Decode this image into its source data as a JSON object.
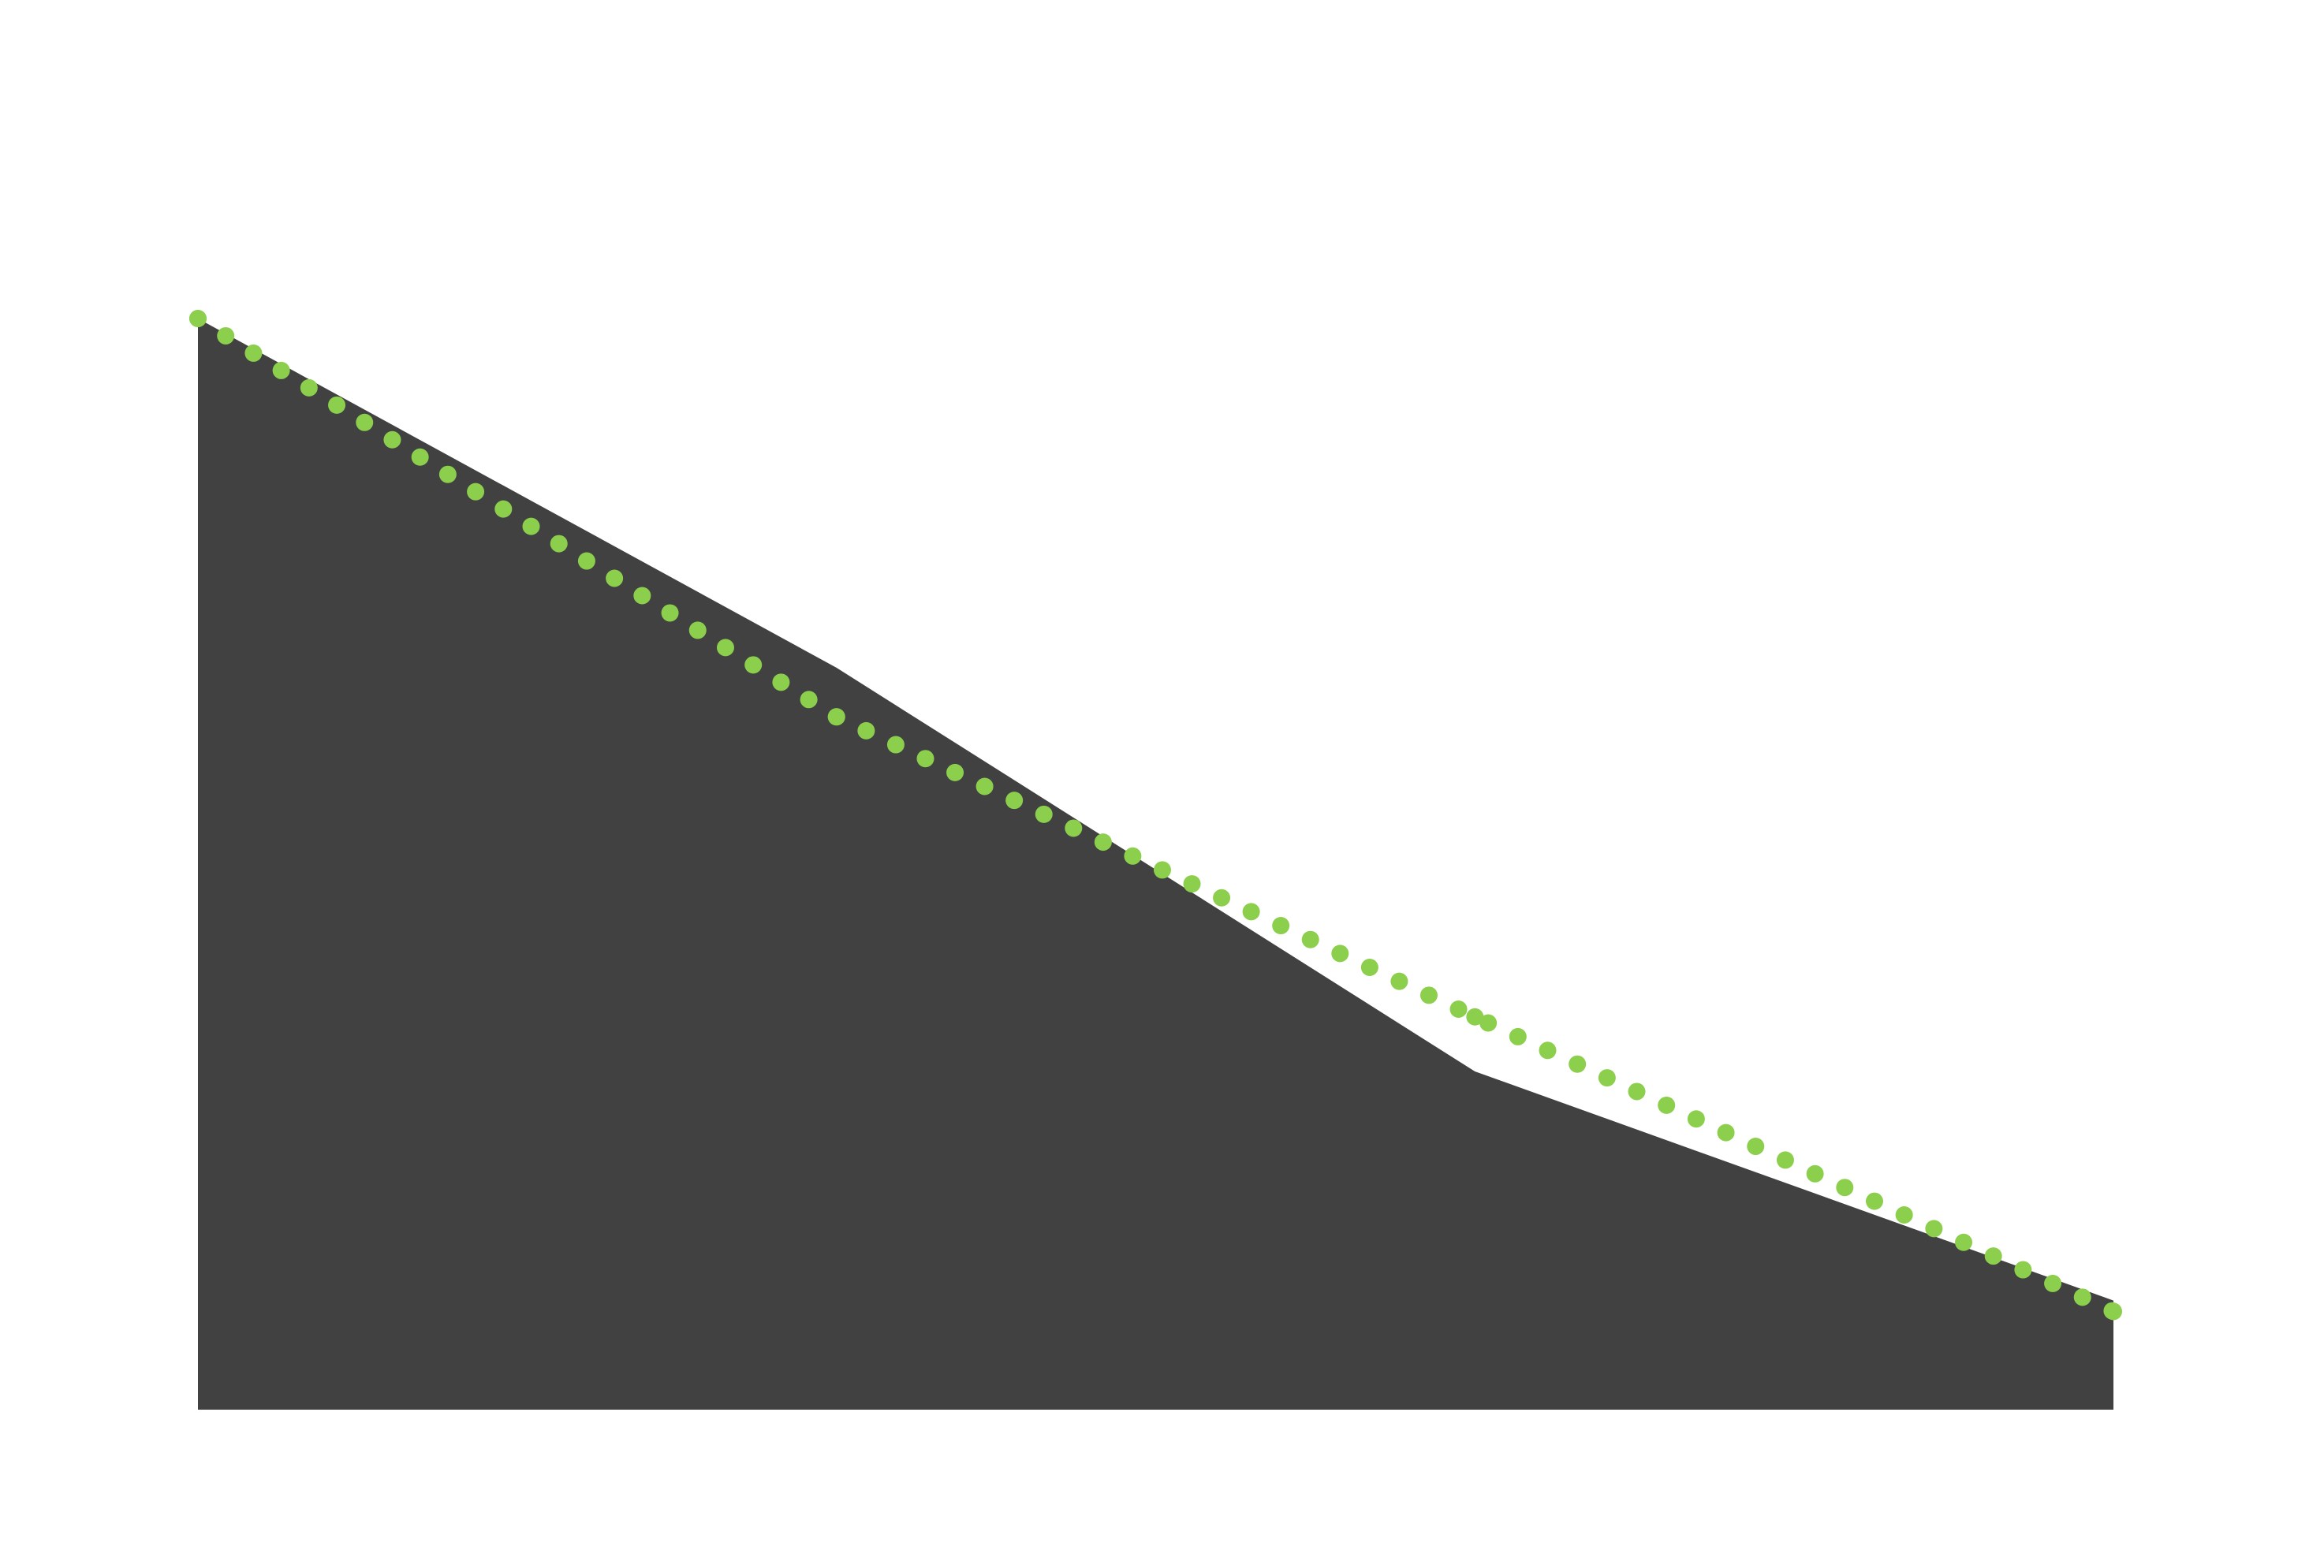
{
  "chart_data": {
    "type": "area",
    "x": [
      1,
      2,
      3,
      4
    ],
    "series": [
      {
        "kind": "area",
        "values": [
          100,
          68,
          31,
          10
        ]
      },
      {
        "kind": "trend",
        "style": "dotted",
        "values": [
          100,
          63.5,
          36,
          9
        ]
      }
    ],
    "ylim": [
      0,
      100
    ],
    "title": "",
    "xlabel": "",
    "ylabel": "",
    "grid": false,
    "axes_visible": false,
    "colors": {
      "area_fill": "#414141",
      "trend": "#8ccf4d",
      "background": "#ffffff"
    }
  }
}
